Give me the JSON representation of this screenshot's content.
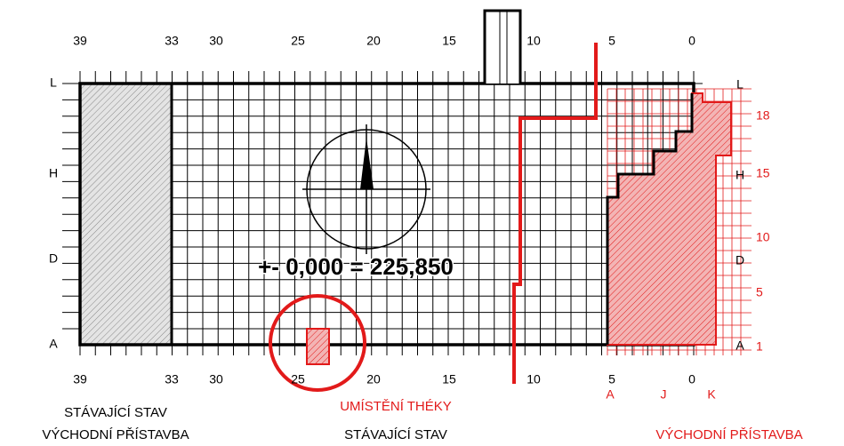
{
  "grid_columns": [
    "39",
    "33",
    "30",
    "25",
    "20",
    "15",
    "10",
    "5",
    "0"
  ],
  "grid_rows_left": [
    "L",
    "H",
    "D",
    "A"
  ],
  "grid_rows_right": [
    "L",
    "H",
    "D",
    "A"
  ],
  "new_rows": [
    "18",
    "15",
    "10",
    "5",
    "1"
  ],
  "new_columns": [
    "A",
    "J",
    "K"
  ],
  "level_note": "+- 0,000 = 225,850",
  "captions": {
    "existing_east": [
      "STÁVAJÍCÍ STAV",
      "VÝCHODNÍ PŘÍSTAVBA"
    ],
    "location": "UMÍSTĚNÍ THÉKY",
    "existing": "STÁVAJÍCÍ STAV",
    "east_extension": "VÝCHODNÍ PŘÍSTAVBA"
  }
}
